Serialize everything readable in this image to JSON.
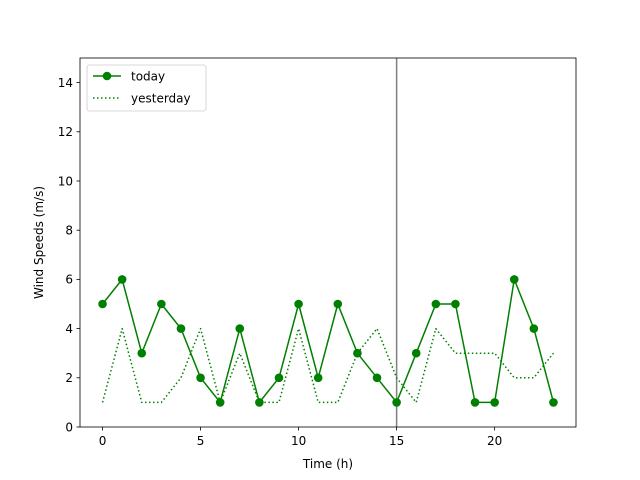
{
  "chart_data": {
    "type": "line",
    "title": "",
    "xlabel": "Time (h)",
    "ylabel": "Wind Speeds (m/s)",
    "xlim": [
      -1.15,
      24.15
    ],
    "ylim": [
      0,
      15
    ],
    "x_ticks": [
      0,
      5,
      10,
      15,
      20
    ],
    "y_ticks": [
      0,
      2,
      4,
      6,
      8,
      10,
      12,
      14
    ],
    "grid": false,
    "legend_placement": "top-left",
    "vertical_line": {
      "x": 15,
      "color": "#808080"
    },
    "x": [
      0,
      1,
      2,
      3,
      4,
      5,
      6,
      7,
      8,
      9,
      10,
      11,
      12,
      13,
      14,
      15,
      16,
      17,
      18,
      19,
      20,
      21,
      22,
      23
    ],
    "series": [
      {
        "name": "today",
        "color": "#008000",
        "style": "solid-markers",
        "values": [
          5,
          6,
          3,
          5,
          4,
          2,
          1,
          4,
          1,
          2,
          5,
          2,
          5,
          3,
          2,
          1,
          3,
          5,
          5,
          1,
          1,
          6,
          4,
          1
        ]
      },
      {
        "name": "yesterday",
        "color": "#008000",
        "style": "dotted",
        "values": [
          1,
          4,
          1,
          1,
          2,
          4,
          1,
          3,
          1,
          1,
          4,
          1,
          1,
          3,
          4,
          2,
          1,
          4,
          3,
          3,
          3,
          2,
          2,
          3
        ]
      }
    ]
  }
}
